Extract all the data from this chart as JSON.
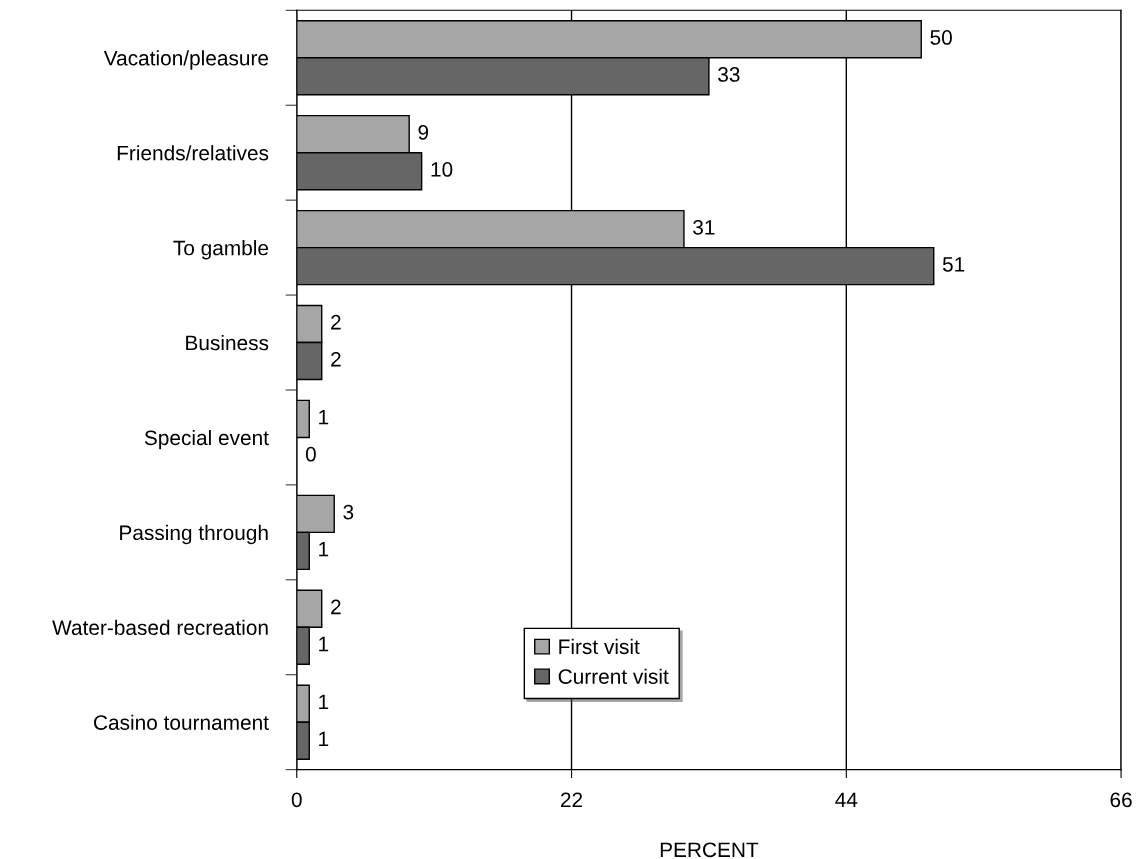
{
  "chart_data": {
    "type": "bar",
    "orientation": "horizontal",
    "xlabel": "PERCENT",
    "categories": [
      "Vacation/pleasure",
      "Friends/relatives",
      "To gamble",
      "Business",
      "Special event",
      "Passing through",
      "Water-based recreation",
      "Casino tournament"
    ],
    "series": [
      {
        "name": "First visit",
        "color": "#a6a6a6",
        "values": [
          50,
          9,
          31,
          2,
          1,
          3,
          2,
          1
        ]
      },
      {
        "name": "Current visit",
        "color": "#666666",
        "values": [
          33,
          10,
          51,
          2,
          0,
          1,
          1,
          1
        ]
      }
    ],
    "xlim": [
      0,
      66
    ],
    "xticks": [
      0,
      22,
      44,
      66
    ],
    "grid": "x",
    "legend": "bottom",
    "data_labels": true
  }
}
